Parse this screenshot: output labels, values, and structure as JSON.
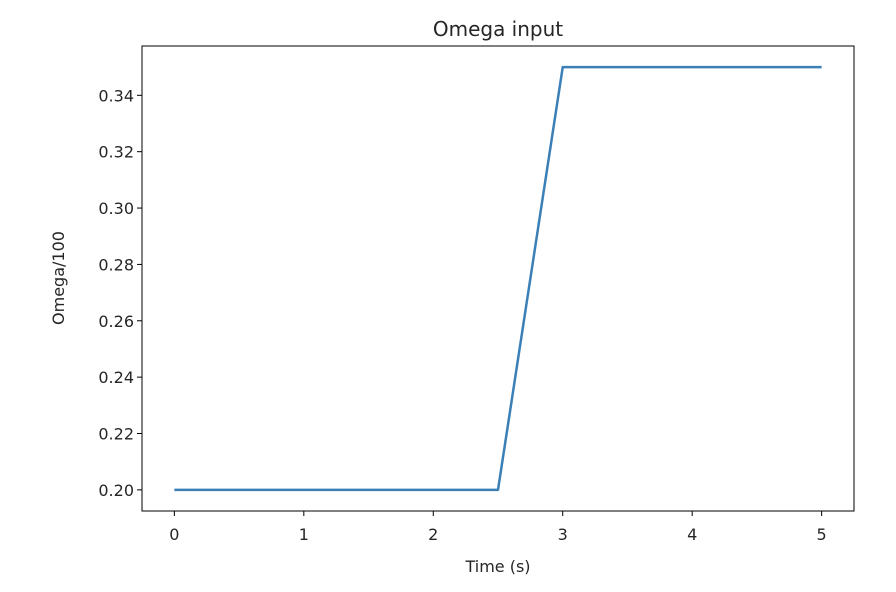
{
  "chart_data": {
    "type": "line",
    "title": "Omega input",
    "xlabel": "Time (s)",
    "ylabel": "Omega/100",
    "xlim": [
      -0.25,
      5.25
    ],
    "ylim": [
      0.1925,
      0.3575
    ],
    "xticks": [
      0,
      1,
      2,
      3,
      4,
      5
    ],
    "xtick_labels": [
      "0",
      "1",
      "2",
      "3",
      "4",
      "5"
    ],
    "yticks": [
      0.2,
      0.22,
      0.24,
      0.26,
      0.28,
      0.3,
      0.32,
      0.34
    ],
    "ytick_labels": [
      "0.20",
      "0.22",
      "0.24",
      "0.26",
      "0.28",
      "0.30",
      "0.32",
      "0.34"
    ],
    "grid": false,
    "legend": "none",
    "series": [
      {
        "color": "#3b7fb7",
        "x": [
          0,
          2.5,
          3,
          5
        ],
        "y": [
          0.2,
          0.2,
          0.35,
          0.35
        ]
      }
    ]
  }
}
